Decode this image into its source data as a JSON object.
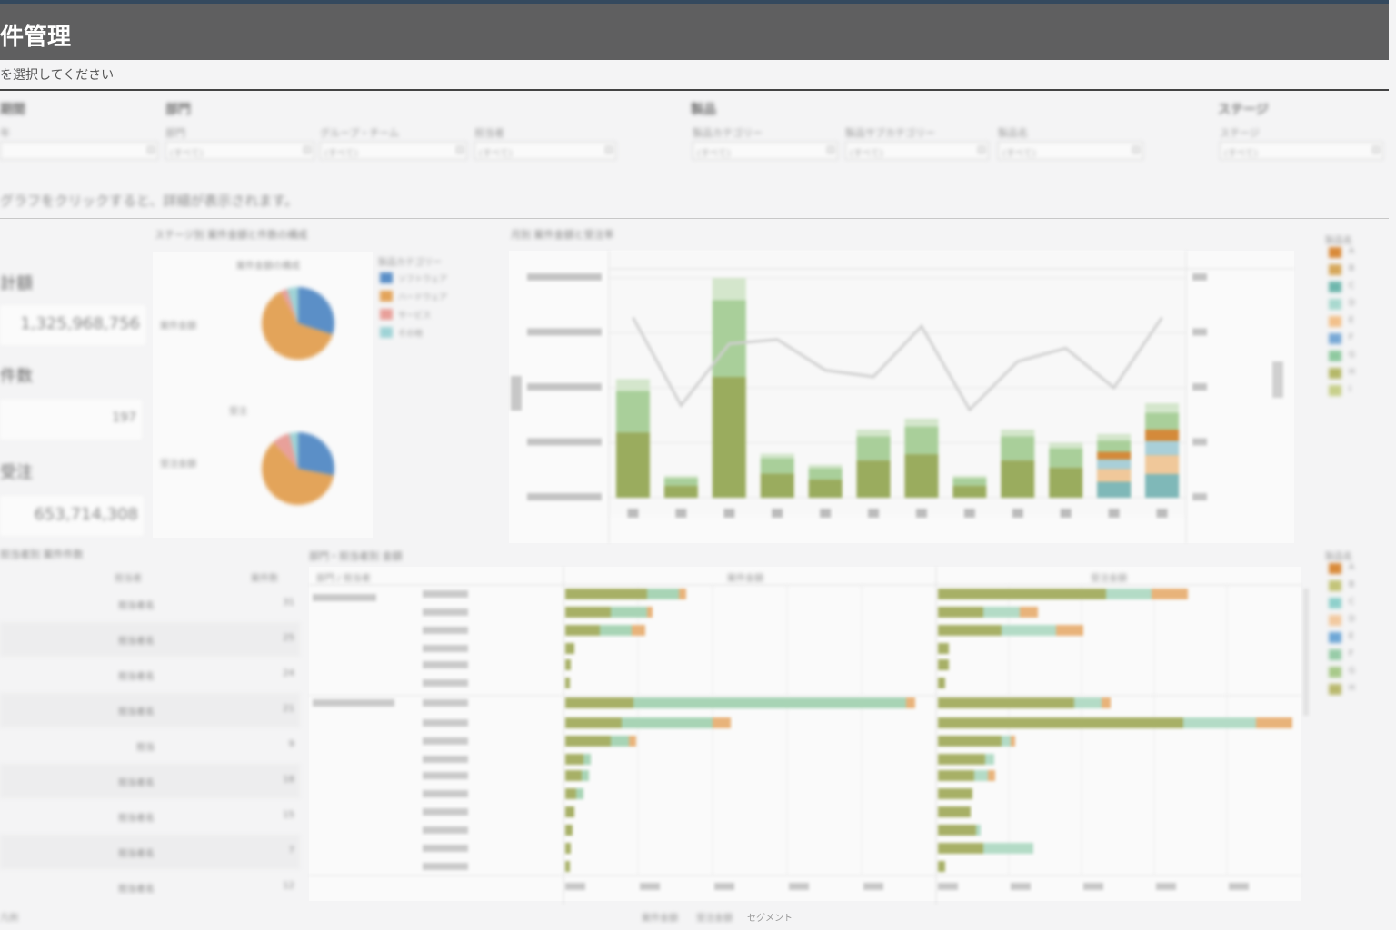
{
  "header": {
    "title": "件管理",
    "subtitle": "を選択してください"
  },
  "filters": {
    "groups": [
      {
        "label": "期間",
        "left": 0
      },
      {
        "label": "部門",
        "left": 182
      },
      {
        "label": "製品",
        "left": 760
      },
      {
        "label": "ステージ",
        "left": 1340
      }
    ],
    "fields": [
      {
        "label": "年",
        "value": "",
        "left": 0,
        "w": 174
      },
      {
        "label": "部門",
        "value": "(すべて)",
        "left": 182,
        "w": 164
      },
      {
        "label": "グループ・チーム",
        "value": "(すべて)",
        "left": 352,
        "w": 162
      },
      {
        "label": "担当者",
        "value": "(すべて)",
        "left": 522,
        "w": 156
      },
      {
        "label": "製品カテゴリー",
        "value": "(すべて)",
        "left": 762,
        "w": 160
      },
      {
        "label": "製品サブカテゴリー",
        "value": "(すべて)",
        "left": 930,
        "w": 158
      },
      {
        "label": "製品名",
        "value": "(すべて)",
        "left": 1098,
        "w": 160
      },
      {
        "label": "ステージ",
        "value": "(すべて)",
        "left": 1342,
        "w": 180
      }
    ]
  },
  "instruction": "グラフをクリックすると、詳細が表示されます。",
  "kpis": [
    {
      "label": "計額",
      "value": "1,325,968,756"
    },
    {
      "label": "件数",
      "value": "197"
    },
    {
      "label": "受注",
      "value": "653,714,308"
    }
  ],
  "pie_section": {
    "title": "ステージ別 案件金額と件数の構成",
    "pie1": {
      "label": "案件金額",
      "caption": "案件金額の構成"
    },
    "pie2": {
      "label": "受注金額",
      "caption": "受注"
    },
    "legend_title": "製品カテゴリー",
    "legend": [
      {
        "name": "ソフトウェア",
        "color": "#5b8fc7"
      },
      {
        "name": "ハードウェア",
        "color": "#e3a45a"
      },
      {
        "name": "サービス",
        "color": "#e8a09a"
      },
      {
        "name": "その他",
        "color": "#9fd3d6"
      }
    ]
  },
  "combo_section": {
    "title": "月別 案件金額と受注率",
    "header_label": "月"
  },
  "legend_right_1": {
    "title": "製品名",
    "items": [
      {
        "name": "A",
        "color": "#d98a3a"
      },
      {
        "name": "B",
        "color": "#d6a85c"
      },
      {
        "name": "C",
        "color": "#6fb7ad"
      },
      {
        "name": "D",
        "color": "#a9d9cf"
      },
      {
        "name": "E",
        "color": "#f2c08a"
      },
      {
        "name": "F",
        "color": "#79a9d6"
      },
      {
        "name": "G",
        "color": "#8fc9a0"
      },
      {
        "name": "H",
        "color": "#b5b86a"
      },
      {
        "name": "I",
        "color": "#c7cf8a"
      }
    ]
  },
  "legend_right_2": {
    "title": "製品名",
    "items": [
      {
        "name": "A",
        "color": "#d98a3a"
      },
      {
        "name": "B",
        "color": "#c3c47a"
      },
      {
        "name": "C",
        "color": "#8fd0cb"
      },
      {
        "name": "D",
        "color": "#f2c9a0"
      },
      {
        "name": "E",
        "color": "#6fa7d6"
      },
      {
        "name": "F",
        "color": "#98cca8"
      },
      {
        "name": "G",
        "color": "#a8c98a"
      },
      {
        "name": "H",
        "color": "#b9b86e"
      }
    ]
  },
  "table_section": {
    "title": "担当者別 案件件数",
    "col1": "担当者",
    "col2": "案件数",
    "rows": [
      {
        "name": "担当者名",
        "count": "31"
      },
      {
        "name": "担当者名",
        "count": "25"
      },
      {
        "name": "担当者名",
        "count": "24"
      },
      {
        "name": "担当者名",
        "count": "21"
      },
      {
        "name": "担当",
        "count": "9"
      },
      {
        "name": "担当者名",
        "count": "18"
      },
      {
        "name": "担当者名",
        "count": "15"
      },
      {
        "name": "担当者名",
        "count": "7"
      },
      {
        "name": "担当者名",
        "count": "12"
      }
    ]
  },
  "bars_section": {
    "title": "部門・担当者別 金額",
    "tree_header": "部門 / 担当者",
    "panel1_header": "案件金額",
    "panel2_header": "受注金額"
  },
  "footer": {
    "left": "凡例",
    "center_a": "案件金額",
    "center_b": "受注金額",
    "center_c": "セグメント"
  },
  "chart_data": [
    {
      "type": "pie",
      "title": "",
      "labels": [
        "ソフトウェア",
        "ハードウェア",
        "サービス",
        "その他"
      ],
      "values": [
        30,
        62,
        3,
        5
      ]
    },
    {
      "type": "pie",
      "title": "",
      "labels": [
        "ソフトウェア",
        "ハードウェア",
        "サービス",
        "その他"
      ],
      "values": [
        28,
        60,
        8,
        4
      ]
    },
    {
      "type": "bar",
      "title": "",
      "categories": [
        "1月",
        "2月",
        "3月",
        "4月",
        "5月",
        "6月",
        "7月",
        "8月",
        "9月",
        "10月",
        "11月",
        "12月"
      ],
      "series": [
        {
          "values": [
            540,
            100,
            1000,
            200,
            150,
            310,
            360,
            100,
            310,
            250,
            290,
            430
          ]
        }
      ],
      "line": [
        0.82,
        0.42,
        0.7,
        0.72,
        0.58,
        0.55,
        0.78,
        0.4,
        0.62,
        0.68,
        0.5,
        0.82
      ],
      "ylim": [
        0,
        1000
      ]
    }
  ]
}
